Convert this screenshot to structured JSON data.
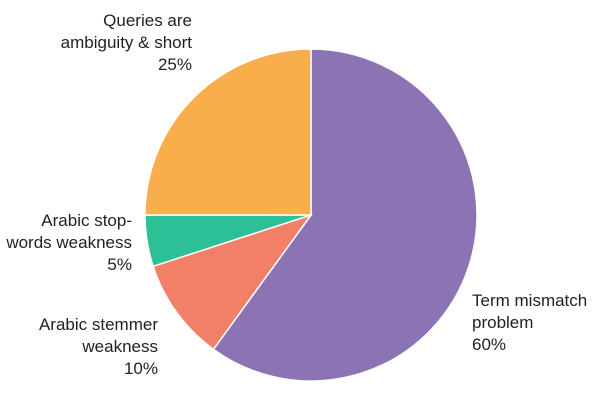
{
  "chart_data": {
    "type": "pie",
    "slices": [
      {
        "name": "Term mismatch problem",
        "value": 60,
        "color": "#8c73b4",
        "label_lines": [
          "Term mismatch",
          "problem",
          "60%"
        ]
      },
      {
        "name": "Arabic stemmer weakness",
        "value": 10,
        "color": "#f28068",
        "label_lines": [
          "Arabic stemmer",
          "weakness",
          "10%"
        ]
      },
      {
        "name": "Arabic stop-words weakness",
        "value": 5,
        "color": "#2dbf96",
        "label_lines": [
          "Arabic stop-",
          "words weakness",
          "5%"
        ]
      },
      {
        "name": "Queries are ambiguity & short",
        "value": 25,
        "color": "#f9ae4c",
        "label_lines": [
          "Queries are",
          "ambiguity & short",
          "25%"
        ]
      }
    ],
    "start": "top",
    "direction": "clockwise"
  }
}
